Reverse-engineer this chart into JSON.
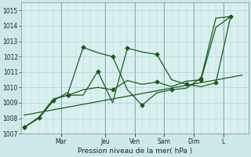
{
  "bg_color": "#cce8e8",
  "plot_bg_color": "#daf0f0",
  "grid_color": "#b0d0d0",
  "line_color": "#1a5c1a",
  "marker_color": "#1a5c1a",
  "ylabel": "Pression niveau de la mer( hPa )",
  "ylim": [
    1007,
    1015.5
  ],
  "yticks": [
    1007,
    1008,
    1009,
    1010,
    1011,
    1012,
    1013,
    1014,
    1015
  ],
  "day_labels": [
    "Mar",
    "Jeu",
    "Ven",
    "Sam",
    "Dim",
    "L"
  ],
  "n_x": 15,
  "xlim": [
    -0.2,
    15.2
  ],
  "series1": [
    1007.4,
    1008.0,
    1009.15,
    1009.7,
    1012.6,
    1012.25,
    1012.0,
    1009.85,
    1008.85,
    1009.65,
    1009.85,
    1009.95,
    1010.6,
    1014.5,
    1014.6
  ],
  "series2": [
    1007.4,
    1008.05,
    1009.25,
    1009.5,
    1009.5,
    1011.05,
    1009.0,
    1012.55,
    1012.3,
    1012.15,
    1010.5,
    1010.2,
    1010.05,
    1010.3,
    1014.6
  ],
  "series3": [
    1007.4,
    1008.05,
    1009.25,
    1009.5,
    1009.85,
    1010.0,
    1009.85,
    1010.45,
    1010.2,
    1010.35,
    1010.05,
    1010.4,
    1010.5,
    1013.9,
    1014.6
  ],
  "trend_x": [
    0,
    14.8
  ],
  "trend_y": [
    1008.2,
    1010.8
  ],
  "marker_x1": [
    0,
    1,
    2,
    3,
    4,
    5,
    6,
    7,
    8,
    9,
    10,
    11,
    12,
    13,
    14
  ],
  "marker_x2": [
    0,
    2,
    4,
    6,
    8,
    10,
    12,
    14
  ],
  "marker_x3": [
    0,
    2,
    4,
    6,
    8,
    10,
    12,
    14
  ]
}
